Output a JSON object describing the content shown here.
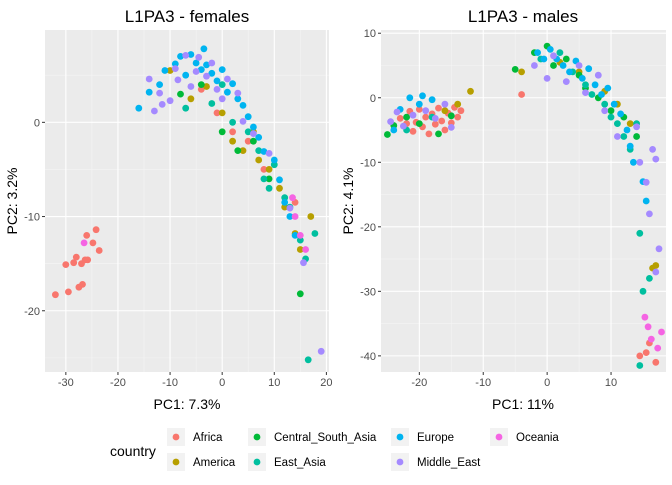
{
  "legend": {
    "title": "country",
    "entries": [
      {
        "name": "Africa",
        "color": "#F8766D"
      },
      {
        "name": "America",
        "color": "#B79F00"
      },
      {
        "name": "Central_South_Asia",
        "color": "#00BA38"
      },
      {
        "name": "East_Asia",
        "color": "#00BF9F"
      },
      {
        "name": "Europe",
        "color": "#00B4F0"
      },
      {
        "name": "Middle_East",
        "color": "#A58AFF"
      },
      {
        "name": "Oceania",
        "color": "#F564E3"
      }
    ]
  },
  "chart_data": [
    {
      "type": "scatter",
      "title": "L1PA3 - females",
      "xlabel": "PC1: 7.3%",
      "ylabel": "PC2: 3.2%",
      "xlim": [
        -34,
        20.5
      ],
      "ylim": [
        -26.5,
        9.8
      ],
      "xticks": [
        -30,
        -20,
        -10,
        0,
        10,
        20
      ],
      "yticks": [
        0,
        -10,
        -20
      ],
      "grid": true,
      "series": [
        {
          "name": "Africa",
          "points": [
            [
              -32,
              -18.3
            ],
            [
              -30,
              -15.1
            ],
            [
              -29.5,
              -18
            ],
            [
              -28.5,
              -14.9
            ],
            [
              -28,
              -14.3
            ],
            [
              -27.5,
              -17.5
            ],
            [
              -27,
              -15
            ],
            [
              -26.8,
              -17.2
            ],
            [
              -26.3,
              -14.6
            ],
            [
              -26,
              -12
            ],
            [
              -25.8,
              -14.6
            ],
            [
              -24.8,
              -12.8
            ],
            [
              -24.2,
              -11.4
            ],
            [
              -23.6,
              -13.6
            ],
            [
              -4,
              3.5
            ],
            [
              -1,
              1
            ],
            [
              2,
              -1
            ],
            [
              5,
              -2
            ],
            [
              8,
              -5
            ],
            [
              14,
              -8.5
            ]
          ]
        },
        {
          "name": "America",
          "points": [
            [
              -10,
              5.5
            ],
            [
              -6,
              2.5
            ],
            [
              -3,
              3.8
            ],
            [
              0,
              1
            ],
            [
              2,
              -2
            ],
            [
              4,
              -3
            ],
            [
              6,
              -1
            ],
            [
              7,
              -4
            ],
            [
              9,
              -5
            ],
            [
              11,
              -7
            ],
            [
              12,
              -9
            ],
            [
              14,
              -11.8
            ],
            [
              15,
              -13.5
            ],
            [
              17,
              -10
            ]
          ]
        },
        {
          "name": "Central_South_Asia",
          "points": [
            [
              -8,
              3
            ],
            [
              -4,
              4
            ],
            [
              0,
              -1
            ],
            [
              3,
              -3
            ],
            [
              6,
              -2
            ],
            [
              9,
              -6
            ],
            [
              15,
              -18.2
            ]
          ]
        },
        {
          "name": "East_Asia",
          "points": [
            [
              -7,
              1.5
            ],
            [
              -2,
              2
            ],
            [
              0,
              4
            ],
            [
              2,
              0
            ],
            [
              5,
              -1
            ],
            [
              7,
              -3
            ],
            [
              8,
              -6
            ],
            [
              9,
              -7
            ],
            [
              10,
              -4.5
            ],
            [
              12,
              -8
            ],
            [
              13,
              -9
            ],
            [
              15,
              -12.5
            ],
            [
              16,
              -14.5
            ],
            [
              17.8,
              -11.8
            ],
            [
              16.5,
              -25.2
            ]
          ]
        },
        {
          "name": "Europe",
          "points": [
            [
              -16,
              1.5
            ],
            [
              -14,
              3.2
            ],
            [
              -12,
              4
            ],
            [
              -11,
              5.5
            ],
            [
              -9,
              6.2
            ],
            [
              -8,
              7
            ],
            [
              -7,
              5
            ],
            [
              -6,
              7.2
            ],
            [
              -5,
              6.3
            ],
            [
              -4,
              5.6
            ],
            [
              -3.5,
              7.8
            ],
            [
              -3,
              6.1
            ],
            [
              -2,
              5.2
            ],
            [
              -1,
              4.4
            ],
            [
              0,
              5.6
            ],
            [
              1,
              3.2
            ],
            [
              2,
              4.1
            ],
            [
              3,
              2.5
            ],
            [
              4,
              1.8
            ],
            [
              5,
              0.6
            ],
            [
              6,
              -0.5
            ],
            [
              7,
              -1.6
            ],
            [
              8,
              -3.1
            ],
            [
              10,
              -4
            ],
            [
              11,
              -6.1
            ],
            [
              12,
              -8.5
            ],
            [
              13,
              -10
            ],
            [
              14,
              -12
            ]
          ]
        },
        {
          "name": "Middle_East",
          "points": [
            [
              -14,
              4.6
            ],
            [
              -13,
              1.2
            ],
            [
              -12,
              3.1
            ],
            [
              -11.5,
              1.9
            ],
            [
              -10,
              2.3
            ],
            [
              -9,
              5.7
            ],
            [
              -8.5,
              4.5
            ],
            [
              -7,
              7.1
            ],
            [
              -6,
              3.8
            ],
            [
              -5,
              5.4
            ],
            [
              -4.5,
              6.9
            ],
            [
              -3,
              4.9
            ],
            [
              -2,
              6.3
            ],
            [
              -1,
              3.5
            ],
            [
              0,
              2.5
            ],
            [
              1,
              4.6
            ],
            [
              3,
              3.1
            ],
            [
              4,
              0.1
            ],
            [
              6,
              -1.2
            ],
            [
              9,
              -3.3
            ],
            [
              13,
              -9.1
            ],
            [
              15.6,
              -14.9
            ],
            [
              19,
              -24.3
            ]
          ]
        },
        {
          "name": "Oceania",
          "points": [
            [
              -26.5,
              -12.8
            ],
            [
              13.5,
              -8
            ],
            [
              14,
              -10
            ],
            [
              15,
              -12
            ],
            [
              16,
              -13.5
            ]
          ]
        }
      ]
    },
    {
      "type": "scatter",
      "title": "L1PA3 - males",
      "xlabel": "PC1: 11%",
      "ylabel": "PC2: 4.1%",
      "xlim": [
        -26,
        18.6
      ],
      "ylim": [
        -42.5,
        10.5
      ],
      "xticks": [
        -20,
        -10,
        0,
        10
      ],
      "yticks": [
        10,
        0,
        -10,
        -20,
        -30,
        -40
      ],
      "grid": true,
      "series": [
        {
          "name": "Africa",
          "points": [
            [
              -23,
              -3.2
            ],
            [
              -22,
              -4
            ],
            [
              -21.5,
              -2.1
            ],
            [
              -21,
              -5.2
            ],
            [
              -20.5,
              -3.8
            ],
            [
              -20,
              -1.8
            ],
            [
              -19.5,
              -4.5
            ],
            [
              -19,
              -3
            ],
            [
              -18.5,
              -5.6
            ],
            [
              -18,
              -2.5
            ],
            [
              -17.5,
              -4.1
            ],
            [
              -17,
              -1.6
            ],
            [
              -16.5,
              -3.6
            ],
            [
              -16,
              -5
            ],
            [
              -15.5,
              -2.4
            ],
            [
              -15,
              -3.9
            ],
            [
              -14.5,
              -1.5
            ],
            [
              -14,
              -3
            ],
            [
              -13.5,
              -2
            ],
            [
              -4,
              0.5
            ],
            [
              14.5,
              -40
            ],
            [
              15.5,
              -39.5
            ],
            [
              17,
              -41
            ],
            [
              16,
              -38
            ]
          ]
        },
        {
          "name": "America",
          "points": [
            [
              -14,
              -1
            ],
            [
              -12,
              1
            ],
            [
              -16,
              -2
            ],
            [
              -4,
              4
            ],
            [
              2,
              5.5
            ],
            [
              5,
              4
            ],
            [
              9,
              1
            ],
            [
              11,
              -1
            ],
            [
              13,
              -4
            ],
            [
              16.5,
              -26.4
            ],
            [
              17,
              -26
            ]
          ]
        },
        {
          "name": "Central_South_Asia",
          "points": [
            [
              -25,
              -5.7
            ],
            [
              -24,
              -4.3
            ],
            [
              -22,
              -3
            ],
            [
              -20,
              -4
            ],
            [
              -17,
              -5.6
            ],
            [
              -15,
              -2.8
            ],
            [
              -5,
              4.4
            ],
            [
              -2,
              7
            ],
            [
              0,
              8
            ],
            [
              1,
              5
            ],
            [
              3,
              6
            ],
            [
              5,
              3.5
            ],
            [
              6,
              1.5
            ],
            [
              8,
              0
            ],
            [
              10,
              -2
            ],
            [
              12,
              -3
            ],
            [
              14,
              -6
            ]
          ]
        },
        {
          "name": "East_Asia",
          "points": [
            [
              -22,
              -5
            ],
            [
              -18,
              -3
            ],
            [
              -1,
              6
            ],
            [
              2,
              7
            ],
            [
              4,
              4
            ],
            [
              6,
              2
            ],
            [
              7,
              0.5
            ],
            [
              9,
              -1
            ],
            [
              10,
              -3
            ],
            [
              11,
              -4
            ],
            [
              12,
              -6
            ],
            [
              13,
              -8
            ],
            [
              14,
              -4
            ],
            [
              14.5,
              -21
            ],
            [
              15,
              -30
            ],
            [
              16,
              -28
            ],
            [
              14.5,
              -41.5
            ]
          ]
        },
        {
          "name": "Europe",
          "points": [
            [
              -24,
              -5
            ],
            [
              -23,
              -1.8
            ],
            [
              -21.5,
              0
            ],
            [
              -20,
              -1
            ],
            [
              -19.5,
              0.3
            ],
            [
              -18,
              -0.3
            ],
            [
              -1.5,
              7
            ],
            [
              -0.5,
              6
            ],
            [
              0.5,
              7.5
            ],
            [
              1.5,
              6
            ],
            [
              2.5,
              5
            ],
            [
              3.5,
              4
            ],
            [
              4.5,
              5.7
            ],
            [
              5.5,
              3
            ],
            [
              6.5,
              4.5
            ],
            [
              7.5,
              2
            ],
            [
              8.5,
              0.5
            ],
            [
              9.5,
              1.5
            ],
            [
              10.5,
              -1
            ],
            [
              11.5,
              -2.5
            ],
            [
              12.5,
              -5
            ],
            [
              13,
              -7.5
            ],
            [
              13.5,
              -10
            ],
            [
              15,
              -13
            ],
            [
              15.5,
              -16
            ]
          ]
        },
        {
          "name": "Middle_East",
          "points": [
            [
              -24.5,
              -3.7
            ],
            [
              -23.5,
              -2.2
            ],
            [
              -22.5,
              -4.4
            ],
            [
              -21,
              -2.7
            ],
            [
              -19,
              -2
            ],
            [
              -17.5,
              -3.2
            ],
            [
              -16,
              -1
            ],
            [
              -15,
              -4.6
            ],
            [
              -2,
              5
            ],
            [
              0,
              3
            ],
            [
              1,
              6.5
            ],
            [
              3,
              2.5
            ],
            [
              5,
              5
            ],
            [
              6,
              0.8
            ],
            [
              8,
              3.5
            ],
            [
              9,
              -2
            ],
            [
              11,
              -6
            ],
            [
              14,
              -4.5
            ],
            [
              14.5,
              -10
            ],
            [
              16.5,
              -8
            ],
            [
              17,
              -9.5
            ],
            [
              15.5,
              -13.1
            ],
            [
              16,
              -18
            ],
            [
              17.5,
              -23.4
            ],
            [
              17,
              -27
            ]
          ]
        },
        {
          "name": "Oceania",
          "points": [
            [
              15.3,
              -34
            ],
            [
              15.8,
              -35.5
            ],
            [
              16.3,
              -37.4
            ],
            [
              17.3,
              -38.8
            ],
            [
              17.9,
              -36.3
            ]
          ]
        }
      ]
    }
  ]
}
